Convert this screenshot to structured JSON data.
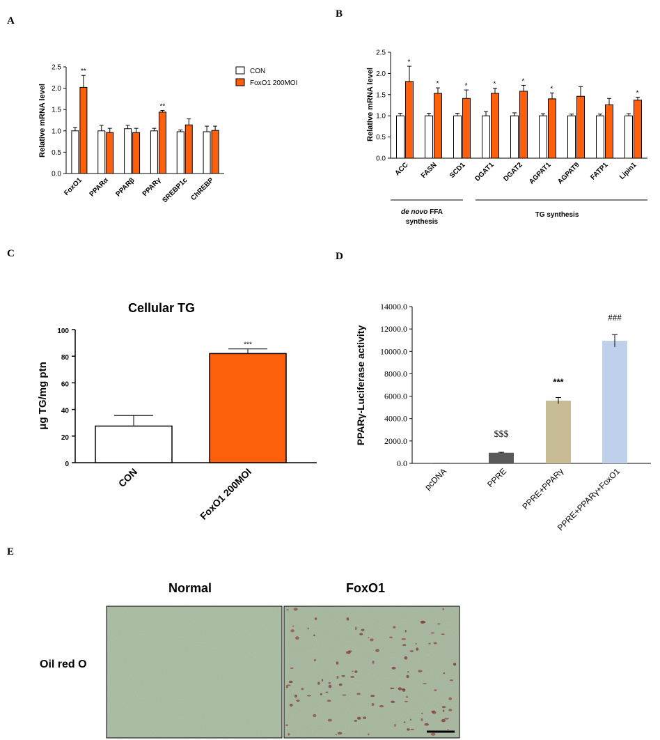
{
  "panels": {
    "a": "A",
    "b": "B",
    "c": "C",
    "d": "D",
    "e": "E"
  },
  "colors": {
    "con": "#ffffff",
    "foxo1": "#fe5f0b",
    "pcdna": "#6b6b6b",
    "ppre": "#595959",
    "ppre_ppar": "#c7bc96",
    "ppre_ppar_foxo": "#bed0ea"
  },
  "chart_data": [
    {
      "type": "bar",
      "panel": "A",
      "ylabel": "Relative mRNA level",
      "ylim": [
        0,
        2.5
      ],
      "yticks": [
        "0.0",
        "0.5",
        "1.0",
        "1.5",
        "2.0",
        "2.5"
      ],
      "categories": [
        "FoxO1",
        "PPARα",
        "PPARβ",
        "PPARγ",
        "SREBP1c",
        "ChREBP"
      ],
      "legend": [
        "CON",
        "FoxO1 200MOI"
      ],
      "series": [
        {
          "name": "CON",
          "values": [
            1.0,
            1.0,
            1.05,
            1.0,
            0.98,
            0.98
          ],
          "errors": [
            0.08,
            0.13,
            0.08,
            0.06,
            0.04,
            0.13
          ]
        },
        {
          "name": "FoxO1 200MOI",
          "values": [
            2.02,
            0.96,
            0.96,
            1.44,
            1.14,
            1.01
          ],
          "errors": [
            0.28,
            0.1,
            0.1,
            0.04,
            0.14,
            0.1
          ]
        }
      ],
      "significance": [
        "**",
        "",
        "",
        "**",
        "",
        ""
      ]
    },
    {
      "type": "bar",
      "panel": "B",
      "ylabel": "Relative mRNA level",
      "ylim": [
        0,
        2.5
      ],
      "yticks": [
        "0.0",
        "0.5",
        "1.0",
        "1.5",
        "2.0",
        "2.5"
      ],
      "categories": [
        "ACC",
        "FASN",
        "SCD1",
        "DGAT1",
        "DGAT2",
        "AGPAT1",
        "AGPAT9",
        "FATP1",
        "Lipin1"
      ],
      "series": [
        {
          "name": "CON",
          "values": [
            1.0,
            1.0,
            1.0,
            1.0,
            1.0,
            1.0,
            1.0,
            1.0,
            1.0
          ],
          "errors": [
            0.06,
            0.06,
            0.06,
            0.1,
            0.07,
            0.05,
            0.04,
            0.04,
            0.05
          ]
        },
        {
          "name": "FoxO1 200MOI",
          "values": [
            1.81,
            1.53,
            1.41,
            1.53,
            1.58,
            1.4,
            1.46,
            1.26,
            1.37
          ],
          "errors": [
            0.36,
            0.13,
            0.2,
            0.12,
            0.14,
            0.14,
            0.23,
            0.15,
            0.07
          ]
        }
      ],
      "significance": [
        "*",
        "*",
        "*",
        "*",
        "*",
        "*",
        "",
        "",
        "*"
      ],
      "groups": [
        {
          "label_italic": "de novo",
          "label_rest": " FFA",
          "label_line2": "synthesis"
        },
        {
          "label": "TG synthesis"
        }
      ]
    },
    {
      "type": "bar",
      "panel": "C",
      "title": "Cellular TG",
      "ylabel": "μg TG/mg ptn",
      "ylim": [
        0,
        100
      ],
      "yticks": [
        "0",
        "20",
        "40",
        "60",
        "80",
        "100"
      ],
      "categories": [
        "CON",
        "FoxO1 200MOI"
      ],
      "values": [
        27.5,
        82
      ],
      "errors": [
        8,
        3.5
      ],
      "significance": [
        "",
        "***"
      ]
    },
    {
      "type": "bar",
      "panel": "D",
      "ylabel": "PPARγ-Luciferase activity",
      "ylim": [
        0,
        14000
      ],
      "yticks": [
        "0.0",
        "2000.0",
        "4000.0",
        "6000.0",
        "8000.0",
        "10000.0",
        "12000.0",
        "14000.0"
      ],
      "categories": [
        "pcDNA",
        "PPRE",
        "PPRE+PPARγ",
        "PPRE+PPARγ+FoxO1"
      ],
      "values": [
        60,
        950,
        5600,
        10950
      ],
      "errors": [
        0,
        40,
        280,
        550
      ],
      "significance": [
        "",
        "$$$",
        "***",
        "###"
      ]
    }
  ],
  "micrograph": {
    "col1": "Normal",
    "col2": "FoxO1",
    "row_label": "Oil red O"
  }
}
